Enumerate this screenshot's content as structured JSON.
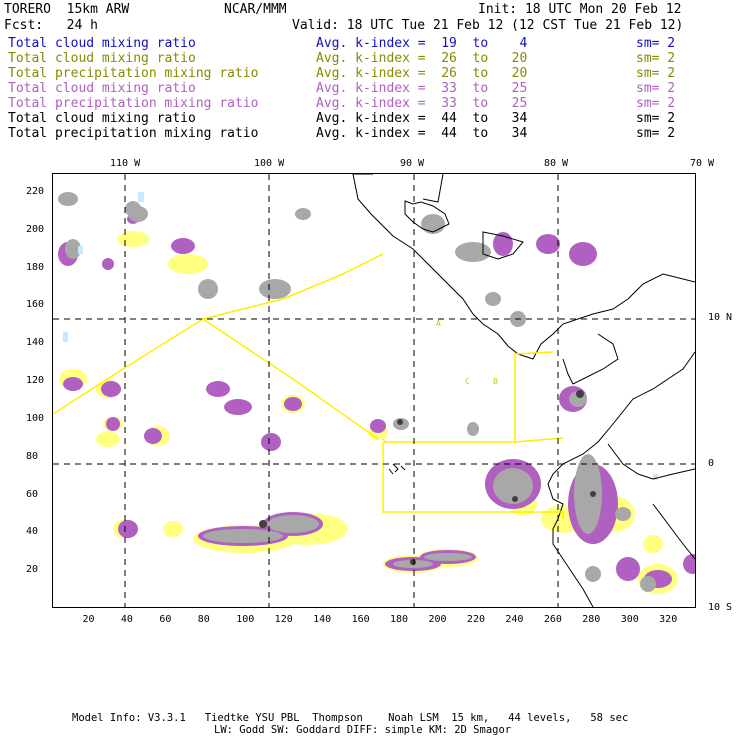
{
  "header": {
    "left_line1": "TORERO  15km ARW",
    "center_line1": "NCAR/MMM",
    "right_line1": "Init: 18 UTC Mon 20 Feb 12",
    "left_line2": "Fcst:   24 h",
    "right_line2": "Valid: 18 UTC Tue 21 Feb 12 (12 CST Tue 21 Feb 12)"
  },
  "legend": [
    {
      "label": "Total cloud mixing ratio",
      "kidx": "Avg. k-index =  19  to    4",
      "sm": "sm= 2",
      "color": "#1010c0"
    },
    {
      "label": "Total cloud mixing ratio",
      "kidx": "Avg. k-index =  26  to   20",
      "sm": "sm= 2",
      "color": "#8a8a00"
    },
    {
      "label": "Total precipitation mixing ratio",
      "kidx": "Avg. k-index =  26  to   20",
      "sm": "sm= 2",
      "color": "#8a8a00"
    },
    {
      "label": "Total cloud mixing ratio",
      "kidx": "Avg. k-index =  33  to   25",
      "sm": "sm= 2",
      "color": "#b060c0"
    },
    {
      "label": "Total precipitation mixing ratio",
      "kidx": "Avg. k-index =  33  to   25",
      "sm": "sm= 2",
      "color": "#b060c0"
    },
    {
      "label": "Total cloud mixing ratio",
      "kidx": "Avg. k-index =  44  to   34",
      "sm": "sm= 2",
      "color": "#000000"
    },
    {
      "label": "Total precipitation mixing ratio",
      "kidx": "Avg. k-index =  44  to   34",
      "sm": "sm= 2",
      "color": "#000000"
    }
  ],
  "lon_labels": [
    "110 W",
    "100 W",
    "90 W",
    "80 W",
    "70 W"
  ],
  "lat_labels": [
    "10 N",
    "0",
    "10 S"
  ],
  "x_ticks": [
    "20",
    "40",
    "60",
    "80",
    "100",
    "120",
    "140",
    "160",
    "180",
    "200",
    "220",
    "240",
    "260",
    "280",
    "300",
    "320"
  ],
  "y_ticks": [
    "220",
    "200",
    "180",
    "160",
    "140",
    "120",
    "100",
    "80",
    "60",
    "40",
    "20"
  ],
  "map_marks": {
    "label_a": "A",
    "label_b": "C",
    "label_c": "B"
  },
  "colors": {
    "gray_fill": "#a8a8a8",
    "dark_gray": "#505050",
    "purple_fill": "#b060c0",
    "yellow_fill": "#ffff80",
    "yellow_line": "#ffee00",
    "light_blue": "#c8e8ff"
  },
  "footer": {
    "line1": "Model Info: V3.3.1   Tiedtke YSU PBL  Thompson    Noah LSM  15 km,   44 levels,   58 sec",
    "line2": "LW: Godd SW: Goddard DIFF: simple KM: 2D Smagor"
  }
}
